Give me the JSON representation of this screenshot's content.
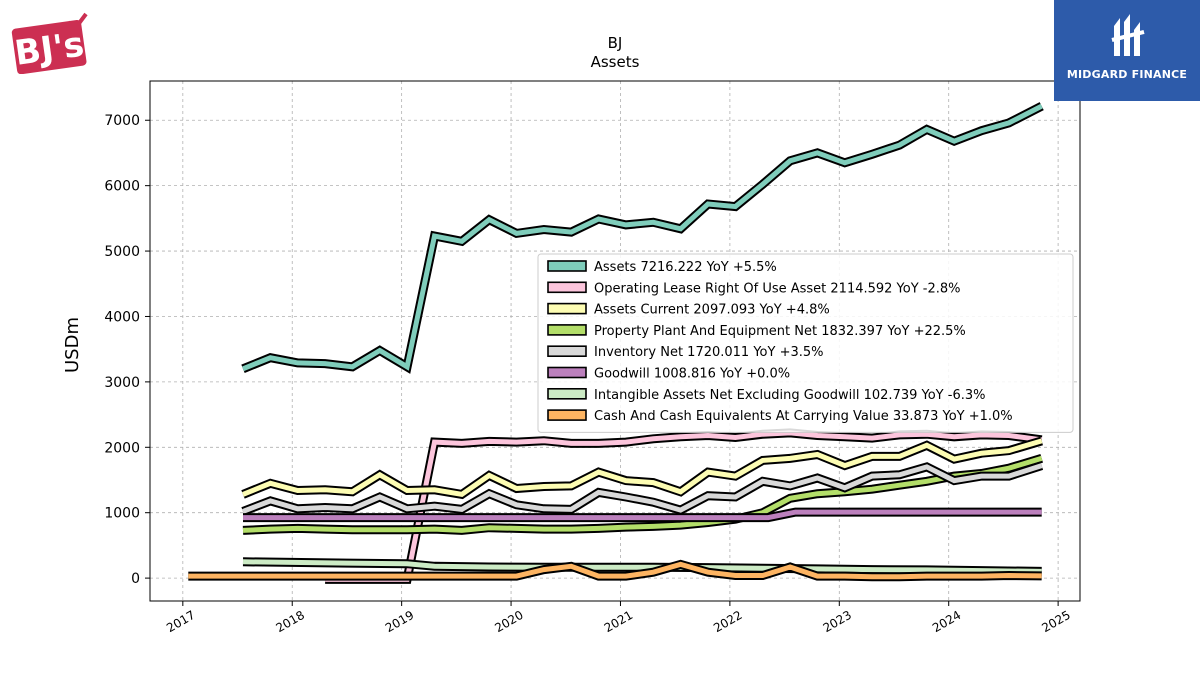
{
  "brand_logo": {
    "text": "BJ's",
    "color": "#cc2f52"
  },
  "fund_logo": {
    "text": "MIDGARD FINANCE",
    "color": "#2d5baa"
  },
  "chart_data": {
    "type": "line",
    "title": "BJ",
    "subtitle": "Assets",
    "ylabel": "USDm",
    "xlabel": "",
    "xlim": [
      2016.7,
      2025.2
    ],
    "ylim": [
      -350,
      7600
    ],
    "xticks": [
      2017,
      2018,
      2019,
      2020,
      2021,
      2022,
      2023,
      2024,
      2025
    ],
    "yticks": [
      0,
      1000,
      2000,
      3000,
      4000,
      5000,
      6000,
      7000
    ],
    "grid": true,
    "legend_placement": "center-right",
    "series": [
      {
        "name": "Assets",
        "legend": "Assets  7216.222 YoY +5.5%",
        "color": "#7fcdbb",
        "points": [
          [
            2017.55,
            3200
          ],
          [
            2017.8,
            3370
          ],
          [
            2018.05,
            3290
          ],
          [
            2018.3,
            3280
          ],
          [
            2018.55,
            3230
          ],
          [
            2018.8,
            3480
          ],
          [
            2019.05,
            3230
          ],
          [
            2019.3,
            5230
          ],
          [
            2019.55,
            5150
          ],
          [
            2019.8,
            5480
          ],
          [
            2020.05,
            5270
          ],
          [
            2020.3,
            5330
          ],
          [
            2020.55,
            5290
          ],
          [
            2020.8,
            5490
          ],
          [
            2021.05,
            5400
          ],
          [
            2021.3,
            5440
          ],
          [
            2021.55,
            5340
          ],
          [
            2021.8,
            5720
          ],
          [
            2022.05,
            5680
          ],
          [
            2022.3,
            6020
          ],
          [
            2022.55,
            6380
          ],
          [
            2022.8,
            6500
          ],
          [
            2023.05,
            6350
          ],
          [
            2023.3,
            6480
          ],
          [
            2023.55,
            6620
          ],
          [
            2023.8,
            6860
          ],
          [
            2024.05,
            6680
          ],
          [
            2024.3,
            6840
          ],
          [
            2024.55,
            6960
          ],
          [
            2024.85,
            7216
          ]
        ]
      },
      {
        "name": "Operating Lease Right Of Use Asset",
        "legend": "Operating Lease Right Of Use Asset  2114.592 YoY -2.8%",
        "color": "#fcc5dc",
        "points": [
          [
            2018.3,
            -20
          ],
          [
            2018.55,
            -20
          ],
          [
            2018.8,
            -20
          ],
          [
            2019.05,
            -20
          ],
          [
            2019.3,
            2080
          ],
          [
            2019.55,
            2060
          ],
          [
            2019.8,
            2090
          ],
          [
            2020.05,
            2080
          ],
          [
            2020.3,
            2100
          ],
          [
            2020.55,
            2060
          ],
          [
            2020.8,
            2060
          ],
          [
            2021.05,
            2080
          ],
          [
            2021.3,
            2130
          ],
          [
            2021.55,
            2160
          ],
          [
            2021.8,
            2180
          ],
          [
            2022.05,
            2150
          ],
          [
            2022.3,
            2200
          ],
          [
            2022.55,
            2220
          ],
          [
            2022.8,
            2180
          ],
          [
            2023.05,
            2160
          ],
          [
            2023.3,
            2140
          ],
          [
            2023.55,
            2190
          ],
          [
            2023.8,
            2200
          ],
          [
            2024.05,
            2160
          ],
          [
            2024.3,
            2190
          ],
          [
            2024.55,
            2180
          ],
          [
            2024.85,
            2115
          ]
        ]
      },
      {
        "name": "Assets Current",
        "legend": "Assets Current  2097.093 YoY +4.8%",
        "color": "#fdfdb3",
        "points": [
          [
            2017.55,
            1280
          ],
          [
            2017.8,
            1450
          ],
          [
            2018.05,
            1340
          ],
          [
            2018.3,
            1350
          ],
          [
            2018.55,
            1320
          ],
          [
            2018.8,
            1580
          ],
          [
            2019.05,
            1340
          ],
          [
            2019.3,
            1350
          ],
          [
            2019.55,
            1280
          ],
          [
            2019.8,
            1570
          ],
          [
            2020.05,
            1370
          ],
          [
            2020.3,
            1400
          ],
          [
            2020.55,
            1410
          ],
          [
            2020.8,
            1620
          ],
          [
            2021.05,
            1490
          ],
          [
            2021.3,
            1460
          ],
          [
            2021.55,
            1320
          ],
          [
            2021.8,
            1620
          ],
          [
            2022.05,
            1560
          ],
          [
            2022.3,
            1800
          ],
          [
            2022.55,
            1830
          ],
          [
            2022.8,
            1890
          ],
          [
            2023.05,
            1720
          ],
          [
            2023.3,
            1860
          ],
          [
            2023.55,
            1860
          ],
          [
            2023.8,
            2030
          ],
          [
            2024.05,
            1820
          ],
          [
            2024.3,
            1910
          ],
          [
            2024.55,
            1950
          ],
          [
            2024.85,
            2097
          ]
        ]
      },
      {
        "name": "Property Plant And Equipment Net",
        "legend": "Property Plant And Equipment Net  1832.397 YoY +22.5%",
        "color": "#b3de69",
        "points": [
          [
            2017.55,
            730
          ],
          [
            2017.8,
            750
          ],
          [
            2018.05,
            760
          ],
          [
            2018.3,
            750
          ],
          [
            2018.55,
            740
          ],
          [
            2018.8,
            740
          ],
          [
            2019.05,
            740
          ],
          [
            2019.3,
            750
          ],
          [
            2019.55,
            730
          ],
          [
            2019.8,
            770
          ],
          [
            2020.05,
            760
          ],
          [
            2020.3,
            750
          ],
          [
            2020.55,
            750
          ],
          [
            2020.8,
            760
          ],
          [
            2021.05,
            780
          ],
          [
            2021.3,
            790
          ],
          [
            2021.55,
            810
          ],
          [
            2021.8,
            850
          ],
          [
            2022.05,
            900
          ],
          [
            2022.3,
            1000
          ],
          [
            2022.55,
            1220
          ],
          [
            2022.8,
            1290
          ],
          [
            2023.05,
            1320
          ],
          [
            2023.3,
            1360
          ],
          [
            2023.55,
            1420
          ],
          [
            2023.8,
            1480
          ],
          [
            2024.05,
            1560
          ],
          [
            2024.3,
            1600
          ],
          [
            2024.55,
            1680
          ],
          [
            2024.85,
            1832
          ]
        ]
      },
      {
        "name": "Inventory Net",
        "legend": "Inventory Net  1720.011 YoY +3.5%",
        "color": "#d9d9d9",
        "points": [
          [
            2017.55,
            1020
          ],
          [
            2017.8,
            1180
          ],
          [
            2018.05,
            1060
          ],
          [
            2018.3,
            1080
          ],
          [
            2018.55,
            1060
          ],
          [
            2018.8,
            1240
          ],
          [
            2019.05,
            1060
          ],
          [
            2019.3,
            1100
          ],
          [
            2019.55,
            1050
          ],
          [
            2019.8,
            1290
          ],
          [
            2020.05,
            1120
          ],
          [
            2020.3,
            1060
          ],
          [
            2020.55,
            1050
          ],
          [
            2020.8,
            1310
          ],
          [
            2021.05,
            1240
          ],
          [
            2021.3,
            1160
          ],
          [
            2021.55,
            1040
          ],
          [
            2021.8,
            1260
          ],
          [
            2022.05,
            1240
          ],
          [
            2022.3,
            1480
          ],
          [
            2022.55,
            1410
          ],
          [
            2022.8,
            1530
          ],
          [
            2023.05,
            1380
          ],
          [
            2023.3,
            1560
          ],
          [
            2023.55,
            1580
          ],
          [
            2023.8,
            1700
          ],
          [
            2024.05,
            1490
          ],
          [
            2024.3,
            1560
          ],
          [
            2024.55,
            1560
          ],
          [
            2024.85,
            1720
          ]
        ]
      },
      {
        "name": "Goodwill",
        "legend": "Goodwill  1008.816 YoY +0.0%",
        "color": "#bc80bd",
        "points": [
          [
            2017.55,
            925
          ],
          [
            2018.0,
            925
          ],
          [
            2018.5,
            925
          ],
          [
            2019.0,
            925
          ],
          [
            2019.5,
            925
          ],
          [
            2020.0,
            925
          ],
          [
            2020.5,
            925
          ],
          [
            2021.0,
            925
          ],
          [
            2021.5,
            925
          ],
          [
            2022.0,
            925
          ],
          [
            2022.35,
            925
          ],
          [
            2022.6,
            1009
          ],
          [
            2023.0,
            1009
          ],
          [
            2023.5,
            1009
          ],
          [
            2024.0,
            1009
          ],
          [
            2024.5,
            1009
          ],
          [
            2024.85,
            1009
          ]
        ]
      },
      {
        "name": "Intangible Assets Net Excluding Goodwill",
        "legend": "Intangible Assets Net Excluding Goodwill  102.739 YoY -6.3%",
        "color": "#ccebc5",
        "points": [
          [
            2017.55,
            250
          ],
          [
            2018.0,
            240
          ],
          [
            2018.5,
            230
          ],
          [
            2019.05,
            220
          ],
          [
            2019.3,
            180
          ],
          [
            2019.8,
            170
          ],
          [
            2020.3,
            165
          ],
          [
            2020.8,
            165
          ],
          [
            2021.3,
            165
          ],
          [
            2021.8,
            160
          ],
          [
            2022.3,
            150
          ],
          [
            2022.8,
            140
          ],
          [
            2023.3,
            130
          ],
          [
            2023.8,
            125
          ],
          [
            2024.3,
            115
          ],
          [
            2024.85,
            103
          ]
        ]
      },
      {
        "name": "Cash And Cash Equivalents At Carrying Value",
        "legend": "Cash And Cash Equivalents At Carrying Value  33.873 YoY +1.0%",
        "color": "#fdb462",
        "points": [
          [
            2017.05,
            30
          ],
          [
            2017.55,
            30
          ],
          [
            2018.05,
            30
          ],
          [
            2018.55,
            30
          ],
          [
            2019.05,
            30
          ],
          [
            2019.55,
            30
          ],
          [
            2020.05,
            30
          ],
          [
            2020.3,
            130
          ],
          [
            2020.55,
            180
          ],
          [
            2020.8,
            30
          ],
          [
            2021.05,
            30
          ],
          [
            2021.3,
            90
          ],
          [
            2021.55,
            210
          ],
          [
            2021.8,
            90
          ],
          [
            2022.05,
            40
          ],
          [
            2022.3,
            40
          ],
          [
            2022.55,
            170
          ],
          [
            2022.8,
            30
          ],
          [
            2023.05,
            30
          ],
          [
            2023.3,
            20
          ],
          [
            2023.55,
            20
          ],
          [
            2023.8,
            30
          ],
          [
            2024.05,
            30
          ],
          [
            2024.3,
            30
          ],
          [
            2024.55,
            40
          ],
          [
            2024.85,
            34
          ]
        ]
      }
    ]
  }
}
